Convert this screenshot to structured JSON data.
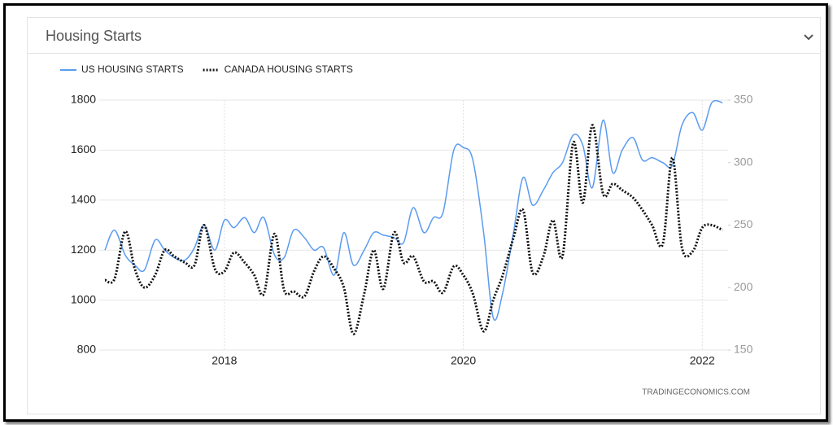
{
  "header": {
    "title": "Housing Starts"
  },
  "chart_data": {
    "type": "line",
    "x": [
      2017,
      2017.08,
      2017.17,
      2017.25,
      2017.33,
      2017.42,
      2017.5,
      2017.58,
      2017.67,
      2017.75,
      2017.83,
      2017.92,
      2018,
      2018.08,
      2018.17,
      2018.25,
      2018.33,
      2018.42,
      2018.5,
      2018.58,
      2018.67,
      2018.75,
      2018.83,
      2018.92,
      2019,
      2019.08,
      2019.17,
      2019.25,
      2019.33,
      2019.42,
      2019.5,
      2019.58,
      2019.67,
      2019.75,
      2019.83,
      2019.92,
      2020,
      2020.08,
      2020.17,
      2020.25,
      2020.33,
      2020.42,
      2020.5,
      2020.58,
      2020.67,
      2020.75,
      2020.83,
      2020.92,
      2021,
      2021.08,
      2021.17,
      2021.25,
      2021.33,
      2021.42,
      2021.5,
      2021.58,
      2021.67,
      2021.75,
      2021.83,
      2021.92,
      2022,
      2022.08,
      2022.17
    ],
    "series": [
      {
        "name": "US HOUSING STARTS",
        "color": "#5b9bf0",
        "dash": "solid",
        "values": [
          1200,
          1280,
          1180,
          1140,
          1120,
          1240,
          1200,
          1170,
          1160,
          1210,
          1300,
          1200,
          1320,
          1290,
          1330,
          1270,
          1330,
          1180,
          1170,
          1280,
          1250,
          1200,
          1210,
          1100,
          1270,
          1140,
          1200,
          1270,
          1260,
          1250,
          1230,
          1370,
          1270,
          1330,
          1350,
          1600,
          1610,
          1560,
          1270,
          930,
          1030,
          1270,
          1490,
          1380,
          1440,
          1510,
          1550,
          1660,
          1620,
          1450,
          1720,
          1510,
          1600,
          1650,
          1560,
          1570,
          1550,
          1540,
          1700,
          1750,
          1680,
          1790,
          1790
        ]
      },
      {
        "name": "CANADA HOUSING STARTS",
        "color": "#111111",
        "dash": "dotted",
        "axis": "y2",
        "values": [
          206,
          207,
          245,
          215,
          200,
          210,
          230,
          225,
          220,
          218,
          250,
          215,
          213,
          228,
          220,
          210,
          195,
          243,
          198,
          197,
          193,
          213,
          225,
          215,
          200,
          163,
          195,
          230,
          199,
          244,
          220,
          225,
          205,
          205,
          196,
          217,
          210,
          195,
          165,
          190,
          210,
          240,
          262,
          212,
          225,
          254,
          225,
          316,
          268,
          330,
          275,
          283,
          278,
          272,
          262,
          250,
          235,
          304,
          232,
          229,
          248,
          250,
          246
        ]
      }
    ],
    "xlim": [
      2017,
      2022.25
    ],
    "xticks": [
      2018,
      2020,
      2022
    ],
    "ylim": [
      800,
      1800
    ],
    "yticks": [
      800,
      1000,
      1200,
      1400,
      1600,
      1800
    ],
    "y2lim": [
      150,
      350
    ],
    "y2ticks": [
      150,
      200,
      250,
      300,
      350
    ],
    "grid": true,
    "legend": "top-left",
    "source": "TRADINGECONOMICS.COM"
  }
}
